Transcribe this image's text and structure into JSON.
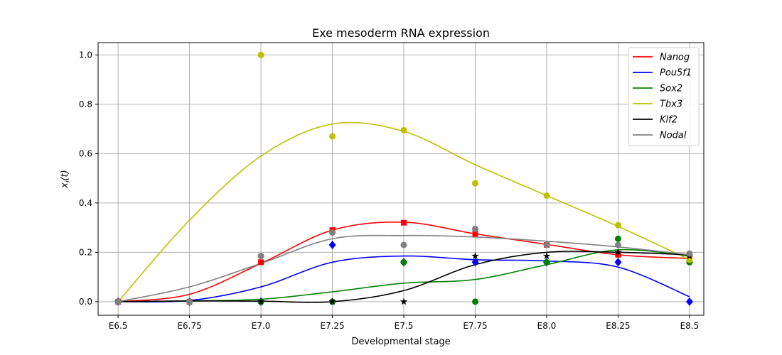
{
  "chart_data": {
    "type": "line",
    "title": "Exe mesoderm RNA expression",
    "xlabel": "Developmental stage",
    "ylabel": "x_i(t)",
    "categories": [
      "E6.5",
      "E6.75",
      "E7.0",
      "E7.25",
      "E7.5",
      "E7.75",
      "E8.0",
      "E8.25",
      "E8.5"
    ],
    "x": [
      6.5,
      6.75,
      7.0,
      7.25,
      7.5,
      7.75,
      8.0,
      8.25,
      8.5
    ],
    "xlim": [
      6.43,
      8.55
    ],
    "ylim": [
      -0.055,
      1.05
    ],
    "yticks": [
      "0.0",
      "0.2",
      "0.4",
      "0.6",
      "0.8",
      "1.0"
    ],
    "grid": true,
    "legend_position": "top-right",
    "series": [
      {
        "name": "Nanog",
        "color": "#ff0000",
        "marker": "square",
        "points": [
          0,
          0,
          0.16,
          0.29,
          0.32,
          0.275,
          0.23,
          0.19,
          0.175
        ],
        "curve": [
          0,
          0.03,
          0.155,
          0.29,
          0.322,
          0.275,
          0.232,
          0.19,
          0.175
        ]
      },
      {
        "name": "Pou5f1",
        "color": "#0000ff",
        "marker": "diamond",
        "points": [
          0,
          0,
          0,
          0.23,
          0.16,
          0.16,
          0.16,
          0.16,
          0
        ],
        "curve": [
          0,
          0.005,
          0.06,
          0.16,
          0.185,
          0.17,
          0.165,
          0.14,
          0.02
        ]
      },
      {
        "name": "Sox2",
        "color": "#008000",
        "marker": "circle",
        "points": [
          0,
          0,
          0,
          0,
          0.16,
          0,
          0.16,
          0.255,
          0.16
        ],
        "curve": [
          0,
          0.003,
          0.01,
          0.04,
          0.075,
          0.09,
          0.15,
          0.21,
          0.185
        ]
      },
      {
        "name": "Tbx3",
        "color": "#bfbf00",
        "marker": "circle",
        "points": [
          0,
          0,
          1.0,
          0.67,
          0.695,
          0.48,
          0.43,
          0.31,
          0.17
        ],
        "curve": [
          0,
          0.33,
          0.59,
          0.72,
          0.69,
          0.555,
          0.43,
          0.305,
          0.17
        ]
      },
      {
        "name": "Klf2",
        "color": "#000000",
        "marker": "star",
        "points": [
          0,
          0,
          0,
          0,
          0,
          0.185,
          0.185,
          0.2,
          0.185
        ],
        "curve": [
          0,
          0.003,
          0.002,
          0.0,
          0.045,
          0.15,
          0.2,
          0.2,
          0.19
        ]
      },
      {
        "name": "Nodal",
        "color": "#808080",
        "marker": "circle",
        "points": [
          0,
          0,
          0.185,
          0.28,
          0.23,
          0.295,
          0.23,
          0.23,
          0.195
        ],
        "curve": [
          0,
          0.06,
          0.155,
          0.255,
          0.268,
          0.262,
          0.245,
          0.222,
          0.19
        ]
      }
    ]
  }
}
